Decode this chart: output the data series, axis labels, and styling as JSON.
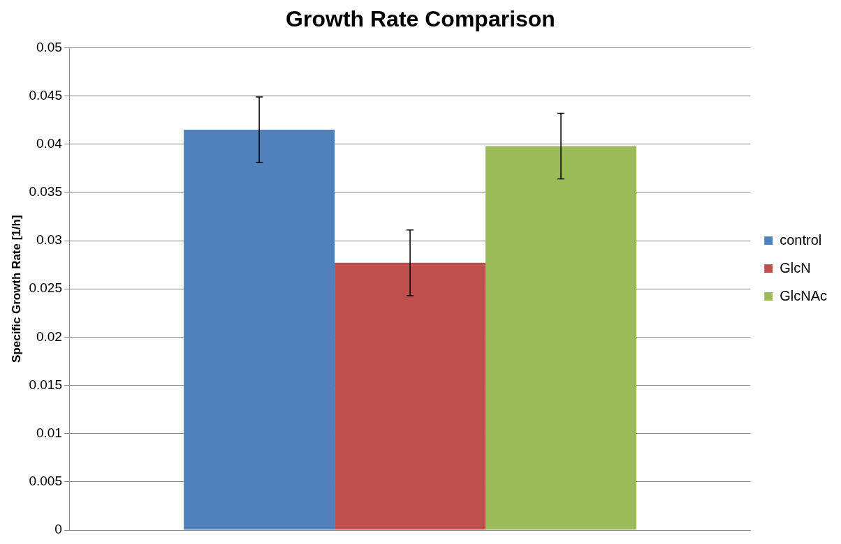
{
  "chart_data": {
    "type": "bar",
    "title": "Growth Rate Comparison",
    "ylabel": "Specific Growth Rate [1/h]",
    "categories": [
      null
    ],
    "series": [
      {
        "name": "control",
        "color": "#4f81bd",
        "values": [
          0.0415
        ],
        "errors": [
          0.0034
        ]
      },
      {
        "name": "GlcN",
        "color": "#c0504d",
        "values": [
          0.0277
        ],
        "errors": [
          0.0034
        ]
      },
      {
        "name": "GlcNAc",
        "color": "#9bbb59",
        "values": [
          0.0398
        ],
        "errors": [
          0.0034
        ]
      }
    ],
    "ylim": [
      0,
      0.05
    ],
    "yticks": [
      0,
      0.005,
      0.01,
      0.015,
      0.02,
      0.025,
      0.03,
      0.035,
      0.04,
      0.045,
      0.05
    ],
    "grid": "y",
    "legend": "right",
    "tick_labels": "y"
  }
}
